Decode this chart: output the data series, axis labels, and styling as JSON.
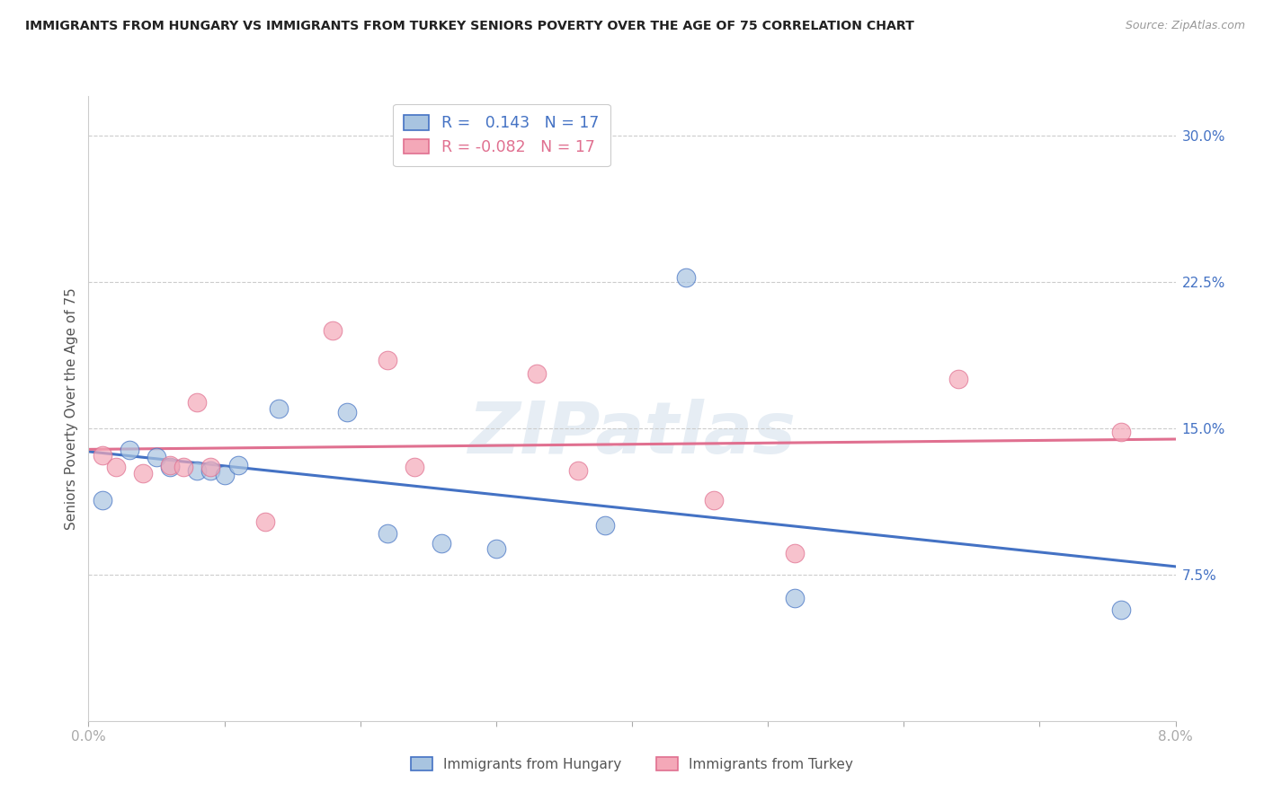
{
  "title": "IMMIGRANTS FROM HUNGARY VS IMMIGRANTS FROM TURKEY SENIORS POVERTY OVER THE AGE OF 75 CORRELATION CHART",
  "source": "Source: ZipAtlas.com",
  "ylabel": "Seniors Poverty Over the Age of 75",
  "xlim": [
    0.0,
    0.08
  ],
  "ylim": [
    0.0,
    0.32
  ],
  "yticks": [
    0.075,
    0.15,
    0.225,
    0.3
  ],
  "ytick_labels": [
    "7.5%",
    "15.0%",
    "22.5%",
    "30.0%"
  ],
  "xtick_positions": [
    0.0,
    0.01,
    0.02,
    0.03,
    0.04,
    0.05,
    0.06,
    0.07,
    0.08
  ],
  "hungary_R": "0.143",
  "hungary_N": "17",
  "turkey_R": "-0.082",
  "turkey_N": "17",
  "hungary_color": "#a8c4e0",
  "turkey_color": "#f4a8b8",
  "hungary_line_color": "#4472c4",
  "turkey_line_color": "#e07090",
  "legend_label_hungary": "Immigrants from Hungary",
  "legend_label_turkey": "Immigrants from Turkey",
  "watermark": "ZIPatlas",
  "hungary_x": [
    0.001,
    0.003,
    0.005,
    0.006,
    0.008,
    0.009,
    0.01,
    0.011,
    0.014,
    0.019,
    0.022,
    0.026,
    0.03,
    0.038,
    0.044,
    0.052,
    0.076
  ],
  "hungary_y": [
    0.113,
    0.139,
    0.135,
    0.13,
    0.128,
    0.128,
    0.126,
    0.131,
    0.16,
    0.158,
    0.096,
    0.091,
    0.088,
    0.1,
    0.227,
    0.063,
    0.057
  ],
  "turkey_x": [
    0.001,
    0.002,
    0.004,
    0.006,
    0.007,
    0.008,
    0.009,
    0.013,
    0.018,
    0.022,
    0.024,
    0.033,
    0.036,
    0.046,
    0.052,
    0.064,
    0.076
  ],
  "turkey_y": [
    0.136,
    0.13,
    0.127,
    0.131,
    0.13,
    0.163,
    0.13,
    0.102,
    0.2,
    0.185,
    0.13,
    0.178,
    0.128,
    0.113,
    0.086,
    0.175,
    0.148
  ]
}
